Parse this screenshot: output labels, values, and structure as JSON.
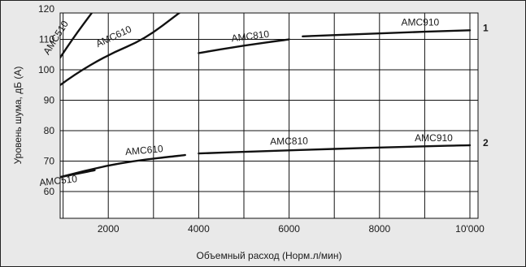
{
  "chart_data": {
    "type": "line",
    "title": "",
    "xlabel": "Объемный расход (Норм.л/мин)",
    "ylabel": "Уровень шума, дБ (А)",
    "xlim": [
      0,
      10000
    ],
    "ylim": [
      50,
      120
    ],
    "x_ticks": [
      2000,
      4000,
      6000,
      8000,
      10000
    ],
    "x_tick_labels": [
      "2000",
      "4000",
      "6000",
      "8000",
      "10'000"
    ],
    "y_ticks": [
      60,
      70,
      80,
      90,
      100,
      110,
      120
    ],
    "y_tick_labels": [
      "60",
      "70",
      "80",
      "90",
      "100",
      "110",
      "120"
    ],
    "grid": true,
    "groups": [
      {
        "label": "1",
        "series": [
          {
            "name": "AMC510",
            "x": [
              500,
              1150,
              1750
            ],
            "y": [
              94,
              109,
              121
            ]
          },
          {
            "name": "AMC610",
            "x": [
              500,
              1200,
              2000,
              2800,
              3600
            ],
            "y": [
              90,
              98,
              105,
              110,
              119
            ]
          },
          {
            "name": "AMC810",
            "x": [
              4000,
              5000,
              6000
            ],
            "y": [
              105.5,
              108,
              110
            ]
          },
          {
            "name": "AMC910",
            "x": [
              6300,
              8000,
              10000
            ],
            "y": [
              111,
              112,
              113
            ]
          }
        ]
      },
      {
        "label": "2",
        "series": [
          {
            "name": "AMC510",
            "x": [
              500,
              1200,
              1700
            ],
            "y": [
              63.5,
              65.5,
              67
            ]
          },
          {
            "name": "AMC610",
            "x": [
              500,
              1500,
              2500,
              3700
            ],
            "y": [
              63,
              67,
              70,
              72
            ]
          },
          {
            "name": "AMC810",
            "x": [
              4000,
              5500,
              7000
            ],
            "y": [
              72.5,
              73.3,
              74
            ]
          },
          {
            "name": "AMC910",
            "x": [
              7000,
              8500,
              10000
            ],
            "y": [
              74,
              74.7,
              75.2
            ]
          }
        ]
      }
    ]
  }
}
